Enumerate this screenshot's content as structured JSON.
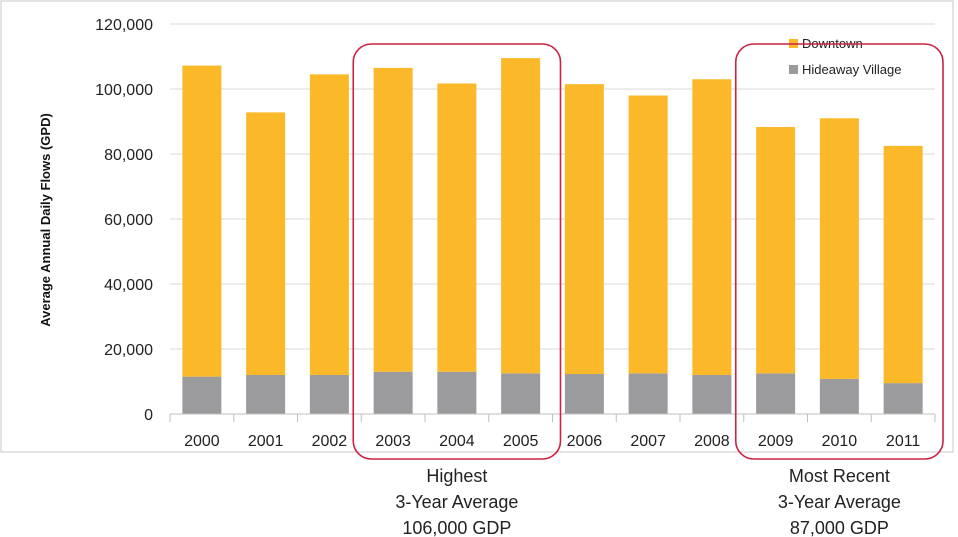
{
  "chart_data": {
    "type": "bar",
    "stacked": true,
    "categories": [
      "2000",
      "2001",
      "2002",
      "2003",
      "2004",
      "2005",
      "2006",
      "2007",
      "2008",
      "2009",
      "2010",
      "2011"
    ],
    "series": [
      {
        "name": "Hideaway Village",
        "color": "#9b9b9d",
        "values": [
          11500,
          12000,
          12000,
          13000,
          13000,
          12500,
          12300,
          12500,
          12000,
          12500,
          10800,
          9500
        ]
      },
      {
        "name": "Downtown",
        "color": "#fbb829",
        "values": [
          95700,
          80800,
          92500,
          93500,
          88700,
          97000,
          89200,
          85500,
          91000,
          75800,
          80200,
          73000
        ]
      }
    ],
    "xlabel": "",
    "ylabel": "Average Annual Daily Flows (GPD)",
    "ylim": [
      0,
      120000
    ],
    "yticks": [
      0,
      20000,
      40000,
      60000,
      80000,
      100000,
      120000
    ],
    "ytick_labels": [
      "0",
      "20,000",
      "40,000",
      "60,000",
      "80,000",
      "100,000",
      "120,000"
    ],
    "grid": true,
    "legend": {
      "placement": "top-right",
      "entries": [
        "Downtown",
        "Hideaway Village"
      ]
    },
    "highlight_color": "#cc2244",
    "annotations": [
      {
        "group": [
          "2003",
          "2004",
          "2005"
        ],
        "lines": [
          "Highest",
          "3-Year Average",
          "106,000 GDP"
        ]
      },
      {
        "group": [
          "2009",
          "2010",
          "2011"
        ],
        "lines": [
          "Most Recent",
          "3-Year Average",
          "87,000 GDP"
        ]
      }
    ]
  }
}
